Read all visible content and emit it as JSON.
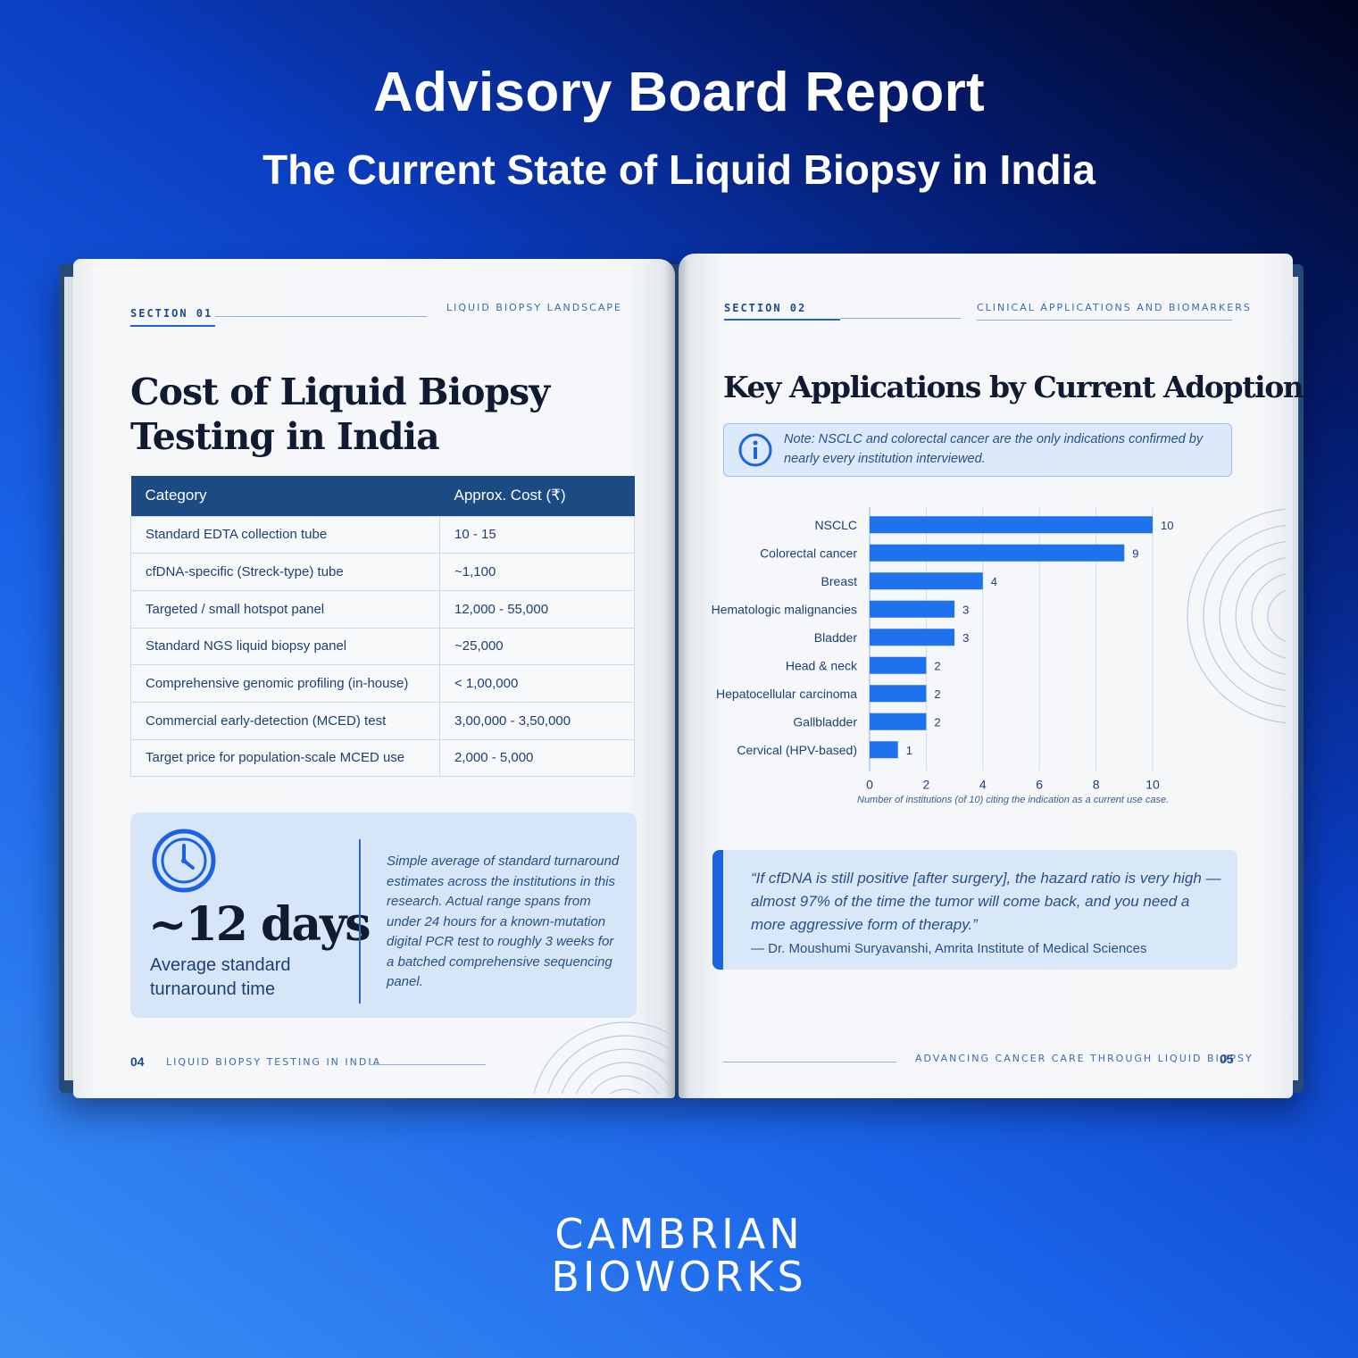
{
  "header": {
    "title": "Advisory Board Report",
    "subtitle": "The Current State of Liquid Biopsy in India"
  },
  "left_page": {
    "section": "SECTION 01",
    "running_head": "LIQUID BIOPSY LANDSCAPE",
    "title_line1": "Cost of Liquid Biopsy",
    "title_line2": "Testing in India",
    "table": {
      "headers": [
        "Category",
        "Approx. Cost (₹)"
      ],
      "rows": [
        [
          "Standard EDTA collection tube",
          "10 - 15"
        ],
        [
          "cfDNA-specific (Streck-type) tube",
          "~1,100"
        ],
        [
          "Targeted / small hotspot panel",
          "12,000 - 55,000"
        ],
        [
          "Standard NGS liquid biopsy panel",
          "~25,000"
        ],
        [
          "Comprehensive genomic profiling (in-house)",
          "< 1,00,000"
        ],
        [
          "Commercial early-detection (MCED) test",
          "3,00,000 - 3,50,000"
        ],
        [
          "Target price for population-scale MCED use",
          "2,000 - 5,000"
        ]
      ]
    },
    "turnaround": {
      "icon": "clock-icon",
      "value": "~12 days",
      "label": "Average standard turnaround time",
      "note": "Simple average of standard turnaround estimates across the institutions in this research. Actual range spans from under 24 hours for a known-mutation digital PCR test to roughly 3 weeks for a batched comprehensive sequencing panel."
    },
    "footer": {
      "page_number": "04",
      "text": "LIQUID BIOPSY TESTING IN INDIA"
    }
  },
  "right_page": {
    "section": "SECTION 02",
    "running_head": "CLINICAL APPLICATIONS AND BIOMARKERS",
    "title": "Key Applications by Current Adoption",
    "note": "Note: NSCLC and colorectal cancer are the only indications confirmed by nearly every institution interviewed.",
    "quote": {
      "text": "“If cfDNA is still positive [after surgery], the hazard ratio is very high — almost 97% of the time the tumor will come back, and you need a more aggressive form of therapy.”",
      "author": "— Dr. Moushumi Suryavanshi, Amrita Institute of Medical Sciences"
    },
    "footer": {
      "page_number": "05",
      "text": "ADVANCING CANCER CARE THROUGH LIQUID BIOPSY"
    }
  },
  "chart_data": {
    "type": "bar",
    "orientation": "horizontal",
    "categories": [
      "NSCLC",
      "Colorectal cancer",
      "Breast",
      "Hematologic malignancies",
      "Bladder",
      "Head & neck",
      "Hepatocellular carcinoma",
      "Gallbladder",
      "Cervical (HPV-based)"
    ],
    "values": [
      10,
      9,
      4,
      3,
      3,
      2,
      2,
      2,
      1
    ],
    "xlim": [
      0,
      10
    ],
    "xticks": [
      0,
      2,
      4,
      6,
      8,
      10
    ],
    "xlabel": "Number of institutions (of 10) citing the indication as a current use case.",
    "grid": true,
    "bar_color": "#1f72ee"
  },
  "brand": {
    "line1": "CAMBRIAN",
    "line2": "BIOWORKS"
  }
}
